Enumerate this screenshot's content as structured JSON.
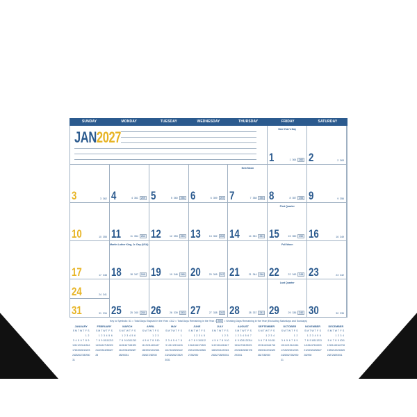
{
  "colors": {
    "primary": "#2b5a8e",
    "sunday": "#e7b425",
    "grid": "#9fb0c2"
  },
  "header": {
    "weekdays": [
      "SUNDAY",
      "MONDAY",
      "TUESDAY",
      "WEDNESDAY",
      "THURSDAY",
      "FRIDAY",
      "SATURDAY"
    ]
  },
  "title": {
    "month": "JAN",
    "year": "2027"
  },
  "first_weekday": 5,
  "days": [
    {
      "d": "1",
      "e": "1",
      "r": "364",
      "w": "260",
      "note": "New Year's Day"
    },
    {
      "d": "2",
      "e": "2",
      "r": "363"
    },
    {
      "d": "3",
      "e": "3",
      "r": "362"
    },
    {
      "d": "4",
      "e": "4",
      "r": "361",
      "w": "259"
    },
    {
      "d": "5",
      "e": "5",
      "r": "360",
      "w": "258"
    },
    {
      "d": "6",
      "e": "6",
      "r": "359",
      "w": "257"
    },
    {
      "d": "7",
      "e": "7",
      "r": "358",
      "w": "256",
      "note": "New Moon"
    },
    {
      "d": "8",
      "e": "8",
      "r": "357",
      "w": "255"
    },
    {
      "d": "9",
      "e": "9",
      "r": "356"
    },
    {
      "d": "10",
      "e": "10",
      "r": "355"
    },
    {
      "d": "11",
      "e": "11",
      "r": "354",
      "w": "254"
    },
    {
      "d": "12",
      "e": "12",
      "r": "353",
      "w": "253"
    },
    {
      "d": "13",
      "e": "13",
      "r": "352",
      "w": "252"
    },
    {
      "d": "14",
      "e": "14",
      "r": "351",
      "w": "251"
    },
    {
      "d": "15",
      "e": "15",
      "r": "350",
      "w": "250",
      "note": "First Quarter"
    },
    {
      "d": "16",
      "e": "16",
      "r": "349"
    },
    {
      "d": "17",
      "e": "17",
      "r": "348"
    },
    {
      "d": "18",
      "e": "18",
      "r": "347",
      "w": "249",
      "note": "Martin Luther King, Jr. Day (USA)"
    },
    {
      "d": "19",
      "e": "19",
      "r": "346",
      "w": "248"
    },
    {
      "d": "20",
      "e": "20",
      "r": "345",
      "w": "247"
    },
    {
      "d": "21",
      "e": "21",
      "r": "344",
      "w": "246"
    },
    {
      "d": "22",
      "e": "22",
      "r": "343",
      "w": "245",
      "note": "Full Moon"
    },
    {
      "d": "23",
      "e": "23",
      "r": "342"
    },
    {
      "d": "24",
      "e": "24",
      "r": "341"
    },
    {
      "d": "25",
      "e": "25",
      "r": "340",
      "w": "244"
    },
    {
      "d": "26",
      "e": "26",
      "r": "339",
      "w": "243"
    },
    {
      "d": "27",
      "e": "27",
      "r": "338",
      "w": "242"
    },
    {
      "d": "28",
      "e": "28",
      "r": "337",
      "w": "241"
    },
    {
      "d": "29",
      "e": "29",
      "r": "336",
      "w": "240",
      "note": "Last Quarter"
    },
    {
      "d": "30",
      "e": "30",
      "r": "335"
    },
    {
      "d": "31",
      "e": "31",
      "r": "334"
    }
  ],
  "key": {
    "prefix": "Key to Symbols:",
    "n1": "51",
    "t1": "= Total Days Elapsed in the Year  •",
    "n2": "312",
    "t2": "= Total Days Remaining in the Year  •",
    "n3": "200",
    "t3": "= Working Days Remaining in the Year (Excluding Saturdays and Sundays)"
  },
  "mini": {
    "weekday_letters": [
      "S",
      "M",
      "T",
      "W",
      "T",
      "F",
      "S"
    ],
    "months": [
      {
        "name": "JANUARY",
        "start": 5,
        "days": 31
      },
      {
        "name": "FEBRUARY",
        "start": 1,
        "days": 28
      },
      {
        "name": "MARCH",
        "start": 1,
        "days": 31
      },
      {
        "name": "APRIL",
        "start": 4,
        "days": 30
      },
      {
        "name": "MAY",
        "start": 6,
        "days": 31
      },
      {
        "name": "JUNE",
        "start": 2,
        "days": 30
      },
      {
        "name": "JULY",
        "start": 4,
        "days": 31
      },
      {
        "name": "AUGUST",
        "start": 0,
        "days": 31
      },
      {
        "name": "SEPTEMBER",
        "start": 3,
        "days": 30
      },
      {
        "name": "OCTOBER",
        "start": 5,
        "days": 31
      },
      {
        "name": "NOVEMBER",
        "start": 1,
        "days": 30
      },
      {
        "name": "DECEMBER",
        "start": 3,
        "days": 31
      }
    ]
  }
}
